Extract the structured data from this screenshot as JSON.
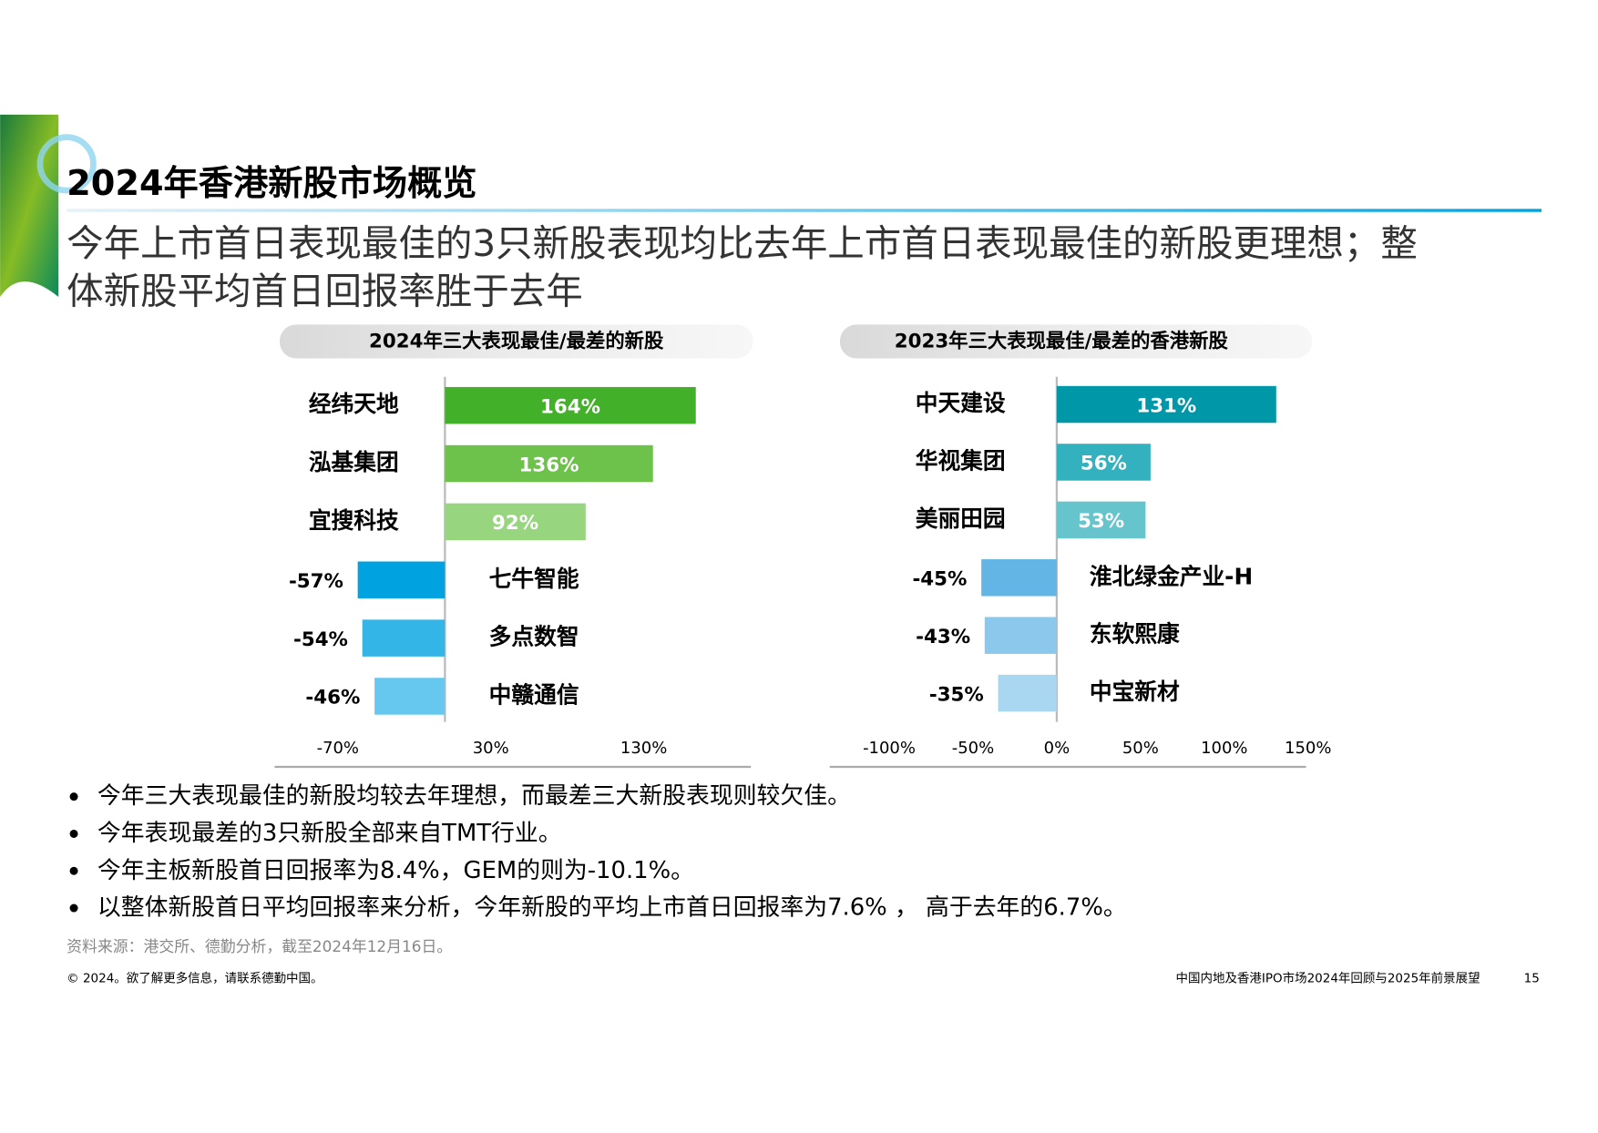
{
  "header": {
    "title": "2024年香港新股市场概览",
    "subtitle_lines": [
      "今年上市首日表现最佳的3只新股表现均比去年上市首日表现最佳的新股更理想；整",
      "体新股平均首日回报率胜于去年"
    ]
  },
  "chart_data": [
    {
      "type": "bar",
      "title": "2024年三大表现最佳/最差的新股",
      "categories": [
        "经纬天地",
        "泓基集团",
        "宜搜科技",
        "七牛智能",
        "多点数智",
        "中赣通信"
      ],
      "values": [
        164,
        136,
        92,
        -57,
        -54,
        -46
      ],
      "value_labels": [
        "164%",
        "136%",
        "92%",
        "-57%",
        "-54%",
        "-46%"
      ],
      "colors": [
        "#43b02a",
        "#6cc24a",
        "#97d57e",
        "#00a3e0",
        "#33b5e8",
        "#66c8ee"
      ],
      "xlim": [
        -110,
        200
      ],
      "xticks": [
        {
          "value": -70,
          "label": "-70%"
        },
        {
          "value": 30,
          "label": "30%"
        },
        {
          "value": 130,
          "label": "130%"
        }
      ]
    },
    {
      "type": "bar",
      "title": "2023年三大表现最佳/最差的香港新股",
      "categories": [
        "中天建设",
        "华视集团",
        "美丽田园",
        "淮北绿金产业-H",
        "东软熙康",
        "中宝新材"
      ],
      "values": [
        131,
        56,
        53,
        -45,
        -43,
        -35
      ],
      "value_labels": [
        "131%",
        "56%",
        "53%",
        "-45%",
        "-43%",
        "-35%"
      ],
      "colors": [
        "#0097a9",
        "#33b1bf",
        "#66c4cc",
        "#62b5e5",
        "#8cc8ec",
        "#a9d6f1"
      ],
      "xlim": [
        -130,
        150
      ],
      "xticks": [
        {
          "value": -100,
          "label": "-100%"
        },
        {
          "value": -50,
          "label": "-50%"
        },
        {
          "value": 0,
          "label": "0%"
        },
        {
          "value": 50,
          "label": "50%"
        },
        {
          "value": 100,
          "label": "100%"
        },
        {
          "value": 150,
          "label": "150%"
        }
      ]
    }
  ],
  "bullets": [
    "今年三大表现最佳的新股均较去年理想，而最差三大新股表现则较欠佳。",
    "今年表现最差的3只新股全部来自TMT行业。",
    "今年主板新股首日回报率为8.4%，GEM的则为-10.1%。",
    "以整体新股首日平均回报率来分析，今年新股的平均上市首日回报率为7.6% ， 高于去年的6.7%。"
  ],
  "source": "资料来源：港交所、德勤分析，截至2024年12月16日。",
  "footer": {
    "copyright": "© 2024。欲了解更多信息，请联系德勤中国。",
    "report": "中国内地及香港IPO市场2024年回顾与2025年前景展望",
    "page": "15"
  }
}
